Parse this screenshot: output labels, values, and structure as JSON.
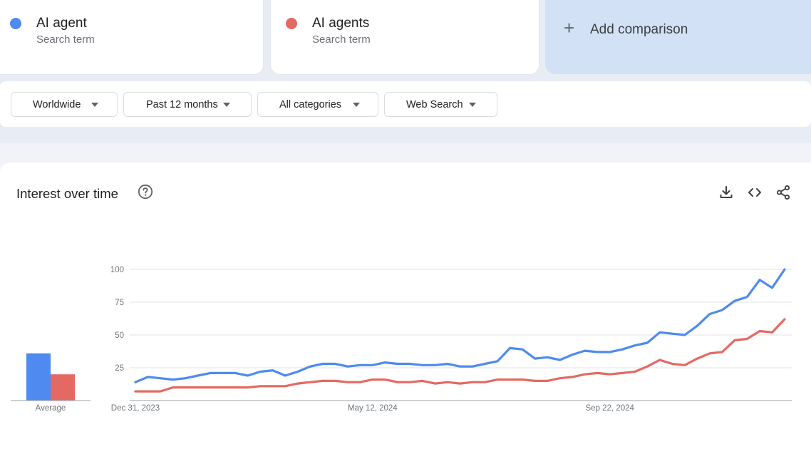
{
  "terms": [
    {
      "name": "AI agent",
      "subtitle": "Search term",
      "color": "#4e8af0"
    },
    {
      "name": "AI agents",
      "subtitle": "Search term",
      "color": "#e46962"
    }
  ],
  "add_comparison": {
    "label": "Add comparison",
    "icon": "plus-icon"
  },
  "filters": [
    {
      "label": "Worldwide"
    },
    {
      "label": "Past 12 months"
    },
    {
      "label": "All categories"
    },
    {
      "label": "Web Search"
    }
  ],
  "chart_card": {
    "title": "Interest over time",
    "help_icon": "question-circle-icon",
    "tools": [
      "download-icon",
      "embed-icon",
      "share-icon"
    ]
  },
  "chart_data": {
    "type": "line",
    "ylim": [
      0,
      100
    ],
    "y_ticks": [
      25,
      50,
      75,
      100
    ],
    "y_tick_labels": [
      "25",
      "50",
      "75",
      "100"
    ],
    "x_tick_labels": [
      "Dec 31, 2023",
      "May 12, 2024",
      "Sep 22, 2024"
    ],
    "x_tick_indices": [
      0,
      19,
      38
    ],
    "grid": true,
    "series": [
      {
        "name": "AI agent",
        "color": "#4e8af0",
        "values": [
          14,
          18,
          17,
          16,
          17,
          19,
          21,
          21,
          21,
          19,
          22,
          23,
          19,
          22,
          26,
          28,
          28,
          26,
          27,
          27,
          29,
          28,
          28,
          27,
          27,
          28,
          26,
          26,
          28,
          30,
          40,
          39,
          32,
          33,
          31,
          35,
          38,
          37,
          37,
          39,
          42,
          44,
          52,
          51,
          50,
          57,
          66,
          69,
          76,
          79,
          92,
          86,
          100
        ]
      },
      {
        "name": "AI agents",
        "color": "#e46962",
        "values": [
          7,
          7,
          7,
          10,
          10,
          10,
          10,
          10,
          10,
          10,
          11,
          11,
          11,
          13,
          14,
          15,
          15,
          14,
          14,
          16,
          16,
          14,
          14,
          15,
          13,
          14,
          13,
          14,
          14,
          16,
          16,
          16,
          15,
          15,
          17,
          18,
          20,
          21,
          20,
          21,
          22,
          26,
          31,
          28,
          27,
          32,
          36,
          37,
          46,
          47,
          53,
          52,
          62
        ]
      }
    ],
    "average": {
      "label": "Average",
      "values": [
        {
          "name": "AI agent",
          "value": 36,
          "color": "#4e8af0"
        },
        {
          "name": "AI agents",
          "value": 20,
          "color": "#e46962"
        }
      ]
    }
  }
}
